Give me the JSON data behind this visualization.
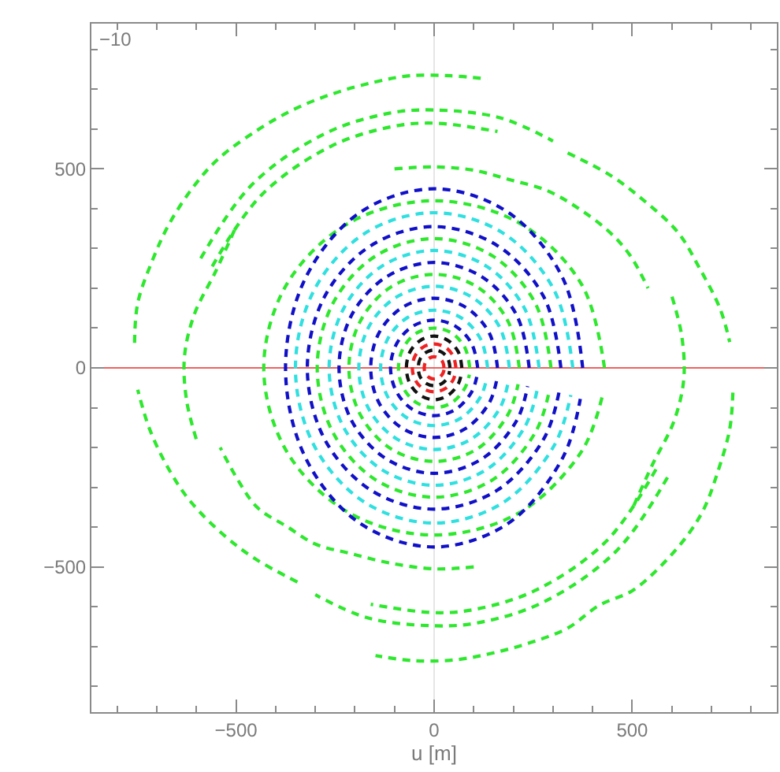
{
  "chart_data": {
    "type": "line",
    "xlabel": "u [m]",
    "annotations": [
      "−10"
    ],
    "line_style": "dashed",
    "xlim": [
      -865,
      865
    ],
    "ylim": [
      -865,
      865
    ],
    "xticks": [
      {
        "value": -800,
        "label": null
      },
      {
        "value": -700,
        "label": null
      },
      {
        "value": -600,
        "label": null
      },
      {
        "value": -500,
        "label": "−500"
      },
      {
        "value": -400,
        "label": null
      },
      {
        "value": -300,
        "label": null
      },
      {
        "value": -200,
        "label": null
      },
      {
        "value": -100,
        "label": null
      },
      0,
      {
        "value": 100,
        "label": null
      },
      {
        "value": 200,
        "label": null
      },
      {
        "value": 300,
        "label": null
      },
      {
        "value": 400,
        "label": null
      },
      500,
      {
        "value": 600,
        "label": null
      },
      {
        "value": 700,
        "label": null
      },
      {
        "value": 800,
        "label": null
      }
    ],
    "yticks": [
      {
        "value": -800,
        "label": null
      },
      {
        "value": -700,
        "label": null
      },
      {
        "value": -600,
        "label": null
      },
      {
        "value": -500,
        "label": "−500"
      },
      {
        "value": -400,
        "label": null
      },
      {
        "value": -300,
        "label": null
      },
      {
        "value": -200,
        "label": null
      },
      {
        "value": -100,
        "label": null
      },
      0,
      {
        "value": 100,
        "label": null
      },
      {
        "value": 200,
        "label": null
      },
      {
        "value": 300,
        "label": null
      },
      {
        "value": 400,
        "label": null
      },
      500,
      {
        "value": 600,
        "label": null
      },
      {
        "value": 700,
        "label": null
      },
      {
        "value": 800,
        "label": null
      }
    ],
    "ref_lines": [
      {
        "axis": "x",
        "value": 0,
        "color": "#e6e6e6"
      },
      {
        "axis": "y",
        "value": 0,
        "color": "#f06060"
      }
    ],
    "series": [
      {
        "color": "#2ee82e",
        "x": [
          -756,
          -748,
          -709,
          -669,
          -609,
          -545,
          -445,
          -351,
          -252,
          -151,
          -61,
          42,
          134,
          null,
          754,
          746,
          714,
          682,
          640,
          570,
          500,
          416,
          337,
          244,
          150,
          58,
          -49,
          -148
        ],
        "values": [
          63,
          163,
          275,
          361,
          453,
          525,
          598,
          651,
          690,
          718,
          734,
          734,
          726,
          null,
          -62,
          -154,
          -267,
          -352,
          -420,
          -500,
          -560,
          -597,
          -654,
          -690,
          -716,
          -733,
          -736,
          -723
        ]
      },
      {
        "color": "#2ee82e",
        "x": [
          337,
          443,
          529,
          615,
          668,
          722,
          746,
          null,
          -345,
          -451,
          -531,
          -617,
          -670,
          -718,
          -748
        ],
        "values": [
          540,
          485,
          421,
          341,
          254,
          148,
          65,
          null,
          -538,
          -480,
          -420,
          -333,
          -254,
          -154,
          -55
        ]
      },
      {
        "color": "#2ee82e",
        "x": [
          -589,
          -460,
          -275,
          -113,
          0,
          168,
          300,
          null,
          589,
          460,
          275,
          113,
          0,
          -168,
          -300
        ],
        "values": [
          275,
          460,
          589,
          640,
          648,
          628,
          570,
          null,
          -275,
          -460,
          -589,
          -640,
          -648,
          -628,
          -570
        ]
      },
      {
        "color": "#2ee82e",
        "x": [
          -560,
          -435,
          -260,
          -107,
          0,
          160,
          null,
          560,
          435,
          260,
          107,
          0,
          -160
        ],
        "values": [
          255,
          435,
          557,
          606,
          615,
          594,
          null,
          -255,
          -435,
          -557,
          -606,
          -615,
          -594
        ]
      },
      {
        "color": "#2ee82e",
        "x": [
          -100,
          0,
          98,
          190,
          284,
          364,
          443,
          495,
          540,
          null,
          100,
          0,
          -114,
          -212,
          -299,
          -371,
          -446,
          -495,
          -540
        ],
        "values": [
          500,
          505,
          497,
          473,
          446,
          401,
          341,
          282,
          200,
          null,
          -500,
          -505,
          -490,
          -466,
          -443,
          -399,
          -351,
          -282,
          -200
        ]
      },
      {
        "color": "#2ee82e",
        "x": [
          -504,
          -551,
          -605,
          -630,
          -625,
          -600,
          null,
          504,
          551,
          605,
          630,
          625,
          600
        ],
        "values": [
          346,
          243,
          135,
          29,
          -80,
          -180,
          null,
          -346,
          -243,
          -135,
          -29,
          80,
          180
        ]
      },
      {
        "color": "#2ee82e",
        "x": [
          430,
          372,
          215,
          0,
          -215,
          -372,
          -430,
          -372,
          -215,
          0,
          215,
          372,
          424
        ],
        "values": [
          0,
          210,
          364,
          420,
          364,
          210,
          0,
          -210,
          -364,
          -420,
          -364,
          -210,
          -73
        ]
      },
      {
        "color": "#1010c8",
        "x": [
          375,
          325,
          188,
          0,
          -188,
          -325,
          -375,
          -325,
          -188,
          0,
          188,
          325,
          369
        ],
        "values": [
          0,
          225,
          390,
          450,
          390,
          225,
          0,
          -225,
          -390,
          -450,
          -390,
          -225,
          -78
        ]
      },
      {
        "color": "#30e0e0",
        "x": [
          350,
          303,
          175,
          0,
          -175,
          -303,
          -350,
          -303,
          -175,
          0,
          175,
          303,
          345
        ],
        "values": [
          0,
          195,
          338,
          390,
          338,
          195,
          0,
          -195,
          -338,
          -390,
          -338,
          -195,
          -68
        ]
      },
      {
        "color": "#1010c8",
        "x": [
          320,
          277,
          160,
          0,
          -160,
          -277,
          -320,
          -277,
          -160,
          0,
          160,
          277,
          315
        ],
        "values": [
          0,
          178,
          307,
          355,
          307,
          178,
          0,
          -178,
          -307,
          -355,
          -307,
          -178,
          -62
        ]
      },
      {
        "color": "#2ee82e",
        "x": [
          295,
          255,
          148,
          0,
          -148,
          -255,
          -295,
          -255,
          -148,
          0,
          148,
          255,
          291
        ],
        "values": [
          0,
          163,
          281,
          325,
          281,
          163,
          0,
          -163,
          -281,
          -325,
          -281,
          -163,
          -57
        ]
      },
      {
        "color": "#30e0e0",
        "x": [
          265,
          229,
          133,
          0,
          -133,
          -229,
          -265,
          -229,
          -133,
          0,
          133,
          229,
          261
        ],
        "values": [
          0,
          148,
          255,
          295,
          255,
          148,
          0,
          -148,
          -255,
          -295,
          -255,
          -148,
          -51
        ]
      },
      {
        "color": "#1010c8",
        "x": [
          240,
          208,
          120,
          0,
          -120,
          -208,
          -240,
          -208,
          -120,
          0,
          120,
          208,
          236
        ],
        "values": [
          0,
          133,
          229,
          265,
          229,
          133,
          0,
          -133,
          -229,
          -265,
          -229,
          -133,
          -46
        ]
      },
      {
        "color": "#2ee82e",
        "x": [
          215,
          186,
          108,
          0,
          -108,
          -186,
          -215,
          -186,
          -108,
          0,
          108,
          186,
          212
        ],
        "values": [
          0,
          118,
          204,
          235,
          204,
          118,
          0,
          -118,
          -204,
          -235,
          -204,
          -118,
          -41
        ]
      },
      {
        "color": "#30e0e0",
        "x": [
          190,
          165,
          95,
          0,
          -95,
          -165,
          -190,
          -165,
          -95,
          0,
          95,
          165,
          187
        ],
        "values": [
          0,
          103,
          178,
          205,
          178,
          103,
          0,
          -103,
          -178,
          -205,
          -178,
          -103,
          -36
        ]
      },
      {
        "color": "#1010c8",
        "x": [
          160,
          139,
          80,
          0,
          -80,
          -139,
          -160,
          -139,
          -80,
          0,
          80,
          139,
          158
        ],
        "values": [
          0,
          88,
          152,
          175,
          152,
          88,
          0,
          -88,
          -152,
          -175,
          -152,
          -88,
          -30
        ]
      },
      {
        "color": "#30e0e0",
        "x": [
          135,
          117,
          68,
          0,
          -68,
          -117,
          -135,
          -117,
          -68,
          0,
          68,
          117,
          133
        ],
        "values": [
          0,
          73,
          126,
          145,
          126,
          73,
          0,
          -73,
          -126,
          -145,
          -126,
          -73,
          -25
        ]
      },
      {
        "color": "#1010c8",
        "x": [
          110,
          95,
          55,
          0,
          -55,
          -95,
          -110,
          -95,
          -55,
          0,
          55,
          95,
          108
        ],
        "values": [
          0,
          60,
          104,
          120,
          104,
          60,
          0,
          -60,
          -104,
          -120,
          -104,
          -60,
          -21
        ]
      },
      {
        "color": "#2ee82e",
        "x": [
          90,
          78,
          45,
          0,
          -45,
          -78,
          -90,
          -78,
          -45,
          0,
          45,
          78,
          89
        ],
        "values": [
          0,
          50,
          87,
          100,
          87,
          50,
          0,
          -50,
          -87,
          -100,
          -87,
          -50,
          -17
        ]
      },
      {
        "color": "#111111",
        "x": [
          70,
          61,
          35,
          0,
          -35,
          -61,
          -70,
          -61,
          -35,
          0,
          35,
          61,
          69
        ],
        "values": [
          0,
          40,
          69,
          80,
          69,
          40,
          0,
          -40,
          -69,
          -80,
          -69,
          -40,
          -14
        ]
      },
      {
        "color": "#ee2222",
        "x": [
          55,
          48,
          28,
          0,
          -28,
          -48,
          -55,
          -48,
          -28,
          0,
          28,
          48,
          54
        ],
        "values": [
          0,
          30,
          52,
          60,
          52,
          30,
          0,
          -30,
          -52,
          -60,
          -52,
          -30,
          -10
        ]
      },
      {
        "color": "#111111",
        "x": [
          40,
          35,
          20,
          0,
          -20,
          -35,
          -40,
          -35,
          -20,
          0,
          20,
          35,
          39
        ],
        "values": [
          0,
          23,
          39,
          45,
          39,
          23,
          0,
          -23,
          -39,
          -45,
          -39,
          -23,
          -8
        ]
      },
      {
        "color": "#ee2222",
        "x": [
          25,
          22,
          13,
          0,
          -13,
          -22,
          -25,
          -22,
          -13,
          0,
          13,
          22,
          25
        ],
        "values": [
          0,
          14,
          24,
          28,
          24,
          14,
          0,
          -14,
          -24,
          -28,
          -24,
          -14,
          -5
        ]
      }
    ]
  }
}
